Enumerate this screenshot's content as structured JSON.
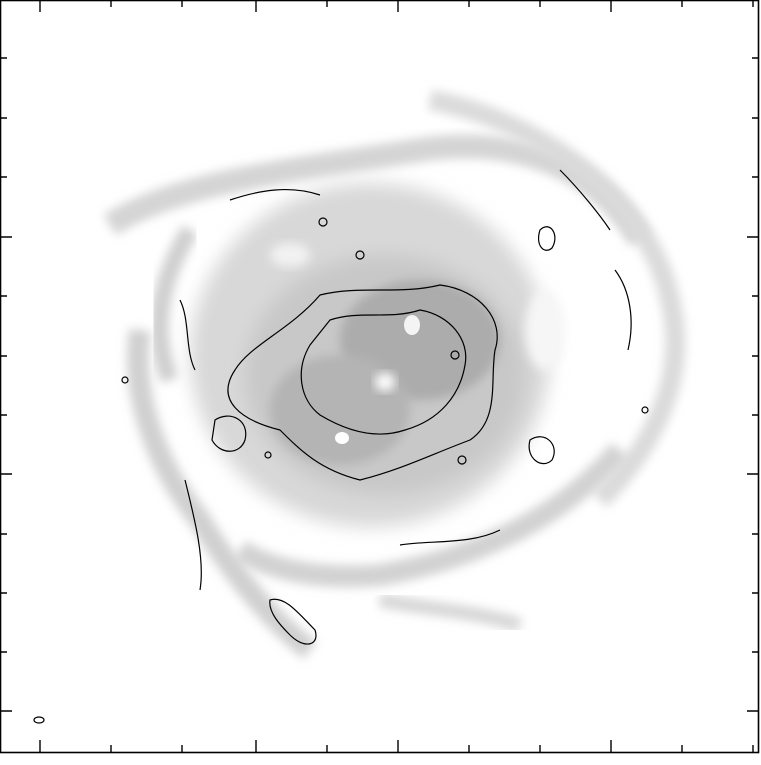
{
  "image": {
    "kind": "grayscale astronomical map with contour overlay",
    "colors": {
      "background": "#ffffff",
      "frame": "#000000",
      "contour": "#000000",
      "diffuse_gas": "#d6d6d6",
      "dense_gas": "#b4b4b4",
      "core_gas": "#9c9c9c"
    },
    "labels_shown": false
  }
}
